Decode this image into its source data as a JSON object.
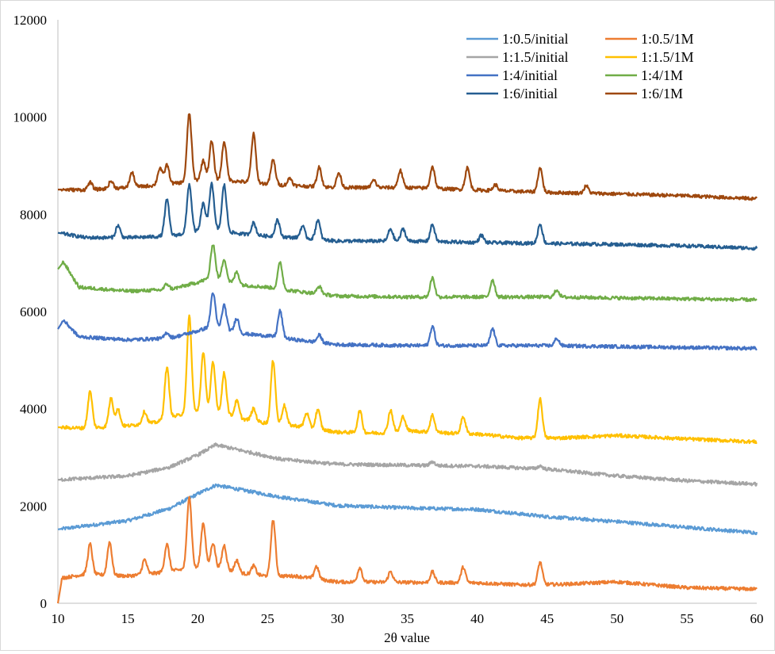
{
  "chart_data": {
    "type": "line",
    "title": "",
    "xlabel": "2θ value",
    "ylabel": "",
    "xlim": [
      10,
      60
    ],
    "ylim": [
      0,
      12000
    ],
    "x_ticks": [
      "10",
      "15",
      "20",
      "25",
      "30",
      "35",
      "40",
      "45",
      "50",
      "55",
      "60"
    ],
    "y_ticks": [
      "0",
      "2000",
      "4000",
      "6000",
      "8000",
      "10000",
      "12000"
    ],
    "legend_position": "top-right",
    "grid": false,
    "series": [
      {
        "name": "1:0.5/initial",
        "color": "#5b9bd5",
        "baseline": [
          [
            10,
            1520
          ],
          [
            15,
            1700
          ],
          [
            18,
            1950
          ],
          [
            20,
            2250
          ],
          [
            21.3,
            2430
          ],
          [
            23,
            2340
          ],
          [
            26,
            2180
          ],
          [
            30,
            2010
          ],
          [
            35,
            1960
          ],
          [
            40,
            1930
          ],
          [
            45,
            1780
          ],
          [
            50,
            1680
          ],
          [
            55,
            1560
          ],
          [
            60,
            1450
          ]
        ],
        "peaks": []
      },
      {
        "name": "1:0.5/1M",
        "color": "#ed7d31",
        "baseline": [
          [
            10,
            0
          ],
          [
            10.3,
            520
          ],
          [
            12,
            600
          ],
          [
            15,
            560
          ],
          [
            17,
            620
          ],
          [
            19,
            700
          ],
          [
            21,
            750
          ],
          [
            23,
            620
          ],
          [
            25,
            560
          ],
          [
            27,
            560
          ],
          [
            30,
            440
          ],
          [
            35,
            430
          ],
          [
            40,
            420
          ],
          [
            43,
            380
          ],
          [
            46,
            390
          ],
          [
            50,
            440
          ],
          [
            55,
            320
          ],
          [
            60,
            290
          ]
        ],
        "peaks": [
          [
            12.3,
            620
          ],
          [
            13.7,
            680
          ],
          [
            16.2,
            300
          ],
          [
            17.8,
            560
          ],
          [
            19.4,
            1500
          ],
          [
            20.4,
            920
          ],
          [
            21.1,
            500
          ],
          [
            21.9,
            500
          ],
          [
            22.8,
            250
          ],
          [
            24,
            180
          ],
          [
            25.4,
            1150
          ],
          [
            28.5,
            260
          ],
          [
            31.6,
            300
          ],
          [
            33.8,
            220
          ],
          [
            36.8,
            220
          ],
          [
            39,
            320
          ],
          [
            44.5,
            460
          ]
        ]
      },
      {
        "name": "1:1.5/initial",
        "color": "#a5a5a5",
        "baseline": [
          [
            10,
            2540
          ],
          [
            15,
            2620
          ],
          [
            18,
            2800
          ],
          [
            20,
            3050
          ],
          [
            21.3,
            3260
          ],
          [
            23,
            3150
          ],
          [
            26,
            2960
          ],
          [
            30,
            2860
          ],
          [
            35,
            2840
          ],
          [
            40,
            2820
          ],
          [
            45,
            2760
          ],
          [
            50,
            2620
          ],
          [
            55,
            2520
          ],
          [
            60,
            2450
          ]
        ],
        "peaks": [
          [
            36.8,
            80
          ],
          [
            44.5,
            60
          ]
        ]
      },
      {
        "name": "1:1.5/1M",
        "color": "#ffc000",
        "baseline": [
          [
            10,
            3620
          ],
          [
            12,
            3600
          ],
          [
            15,
            3650
          ],
          [
            17,
            3720
          ],
          [
            19,
            3900
          ],
          [
            21,
            3950
          ],
          [
            23,
            3800
          ],
          [
            25,
            3700
          ],
          [
            27,
            3650
          ],
          [
            30,
            3520
          ],
          [
            33,
            3500
          ],
          [
            35,
            3550
          ],
          [
            38,
            3500
          ],
          [
            40,
            3480
          ],
          [
            43,
            3400
          ],
          [
            46,
            3400
          ],
          [
            50,
            3450
          ],
          [
            55,
            3380
          ],
          [
            60,
            3320
          ]
        ],
        "peaks": [
          [
            12.3,
            750
          ],
          [
            13.8,
            580
          ],
          [
            14.3,
            350
          ],
          [
            16.2,
            250
          ],
          [
            17.8,
            1050
          ],
          [
            19.4,
            2000
          ],
          [
            20.4,
            1200
          ],
          [
            21.1,
            1000
          ],
          [
            21.9,
            850
          ],
          [
            22.8,
            350
          ],
          [
            24,
            250
          ],
          [
            25.4,
            1300
          ],
          [
            26.2,
            400
          ],
          [
            27.8,
            300
          ],
          [
            28.6,
            400
          ],
          [
            31.6,
            450
          ],
          [
            33.8,
            450
          ],
          [
            34.7,
            300
          ],
          [
            36.8,
            350
          ],
          [
            39,
            350
          ],
          [
            44.5,
            800
          ]
        ]
      },
      {
        "name": "1:4/initial",
        "color": "#4472c4",
        "baseline": [
          [
            10,
            5640
          ],
          [
            10.4,
            5820
          ],
          [
            11.5,
            5480
          ],
          [
            15,
            5420
          ],
          [
            18,
            5450
          ],
          [
            20,
            5600
          ],
          [
            21,
            5700
          ],
          [
            23,
            5550
          ],
          [
            25,
            5500
          ],
          [
            27,
            5420
          ],
          [
            30,
            5320
          ],
          [
            35,
            5300
          ],
          [
            40,
            5300
          ],
          [
            45,
            5300
          ],
          [
            50,
            5280
          ],
          [
            55,
            5260
          ],
          [
            60,
            5240
          ]
        ],
        "peaks": [
          [
            17.8,
            120
          ],
          [
            21.1,
            700
          ],
          [
            21.9,
            500
          ],
          [
            22.8,
            300
          ],
          [
            25.9,
            550
          ],
          [
            28.7,
            150
          ],
          [
            36.8,
            400
          ],
          [
            41.1,
            350
          ],
          [
            45.7,
            150
          ]
        ]
      },
      {
        "name": "1:4/1M",
        "color": "#70ad47",
        "baseline": [
          [
            10,
            6870
          ],
          [
            10.4,
            7020
          ],
          [
            11.5,
            6500
          ],
          [
            15,
            6420
          ],
          [
            18,
            6450
          ],
          [
            20,
            6600
          ],
          [
            21,
            6700
          ],
          [
            23,
            6550
          ],
          [
            25,
            6500
          ],
          [
            27,
            6420
          ],
          [
            30,
            6320
          ],
          [
            35,
            6300
          ],
          [
            40,
            6300
          ],
          [
            45,
            6300
          ],
          [
            50,
            6280
          ],
          [
            55,
            6260
          ],
          [
            60,
            6240
          ]
        ],
        "peaks": [
          [
            17.8,
            120
          ],
          [
            21.1,
            700
          ],
          [
            21.9,
            450
          ],
          [
            22.8,
            250
          ],
          [
            25.9,
            550
          ],
          [
            28.7,
            150
          ],
          [
            36.8,
            400
          ],
          [
            41.1,
            350
          ],
          [
            45.7,
            150
          ]
        ]
      },
      {
        "name": "1:6/initial",
        "color": "#255e91",
        "baseline": [
          [
            10,
            7620
          ],
          [
            12,
            7520
          ],
          [
            15,
            7520
          ],
          [
            18,
            7550
          ],
          [
            20,
            7650
          ],
          [
            21,
            7700
          ],
          [
            23,
            7600
          ],
          [
            25,
            7550
          ],
          [
            27,
            7520
          ],
          [
            30,
            7450
          ],
          [
            35,
            7450
          ],
          [
            40,
            7420
          ],
          [
            45,
            7400
          ],
          [
            50,
            7380
          ],
          [
            55,
            7350
          ],
          [
            60,
            7300
          ]
        ],
        "peaks": [
          [
            14.3,
            250
          ],
          [
            17.8,
            750
          ],
          [
            19.4,
            1000
          ],
          [
            20.4,
            550
          ],
          [
            21,
            950
          ],
          [
            21.9,
            950
          ],
          [
            24,
            250
          ],
          [
            25.7,
            350
          ],
          [
            27.5,
            250
          ],
          [
            28.6,
            400
          ],
          [
            33.8,
            250
          ],
          [
            34.7,
            250
          ],
          [
            36.8,
            350
          ],
          [
            40.3,
            150
          ],
          [
            44.5,
            400
          ]
        ]
      },
      {
        "name": "1:6/1M",
        "color": "#9e480e",
        "baseline": [
          [
            10,
            8510
          ],
          [
            12,
            8500
          ],
          [
            15,
            8550
          ],
          [
            18,
            8620
          ],
          [
            20,
            8700
          ],
          [
            22,
            8700
          ],
          [
            24,
            8650
          ],
          [
            26,
            8600
          ],
          [
            30,
            8550
          ],
          [
            35,
            8550
          ],
          [
            40,
            8500
          ],
          [
            45,
            8450
          ],
          [
            50,
            8420
          ],
          [
            55,
            8380
          ],
          [
            60,
            8320
          ]
        ],
        "peaks": [
          [
            12.3,
            150
          ],
          [
            13.8,
            150
          ],
          [
            15.3,
            300
          ],
          [
            17.3,
            350
          ],
          [
            17.8,
            400
          ],
          [
            19.4,
            1400
          ],
          [
            20.4,
            400
          ],
          [
            21,
            800
          ],
          [
            21.9,
            800
          ],
          [
            24,
            1000
          ],
          [
            25.4,
            500
          ],
          [
            26.6,
            150
          ],
          [
            28.7,
            400
          ],
          [
            30.1,
            300
          ],
          [
            32.6,
            150
          ],
          [
            34.5,
            350
          ],
          [
            36.8,
            450
          ],
          [
            39.3,
            450
          ],
          [
            41.3,
            120
          ],
          [
            44.5,
            500
          ],
          [
            47.8,
            150
          ]
        ]
      }
    ]
  }
}
